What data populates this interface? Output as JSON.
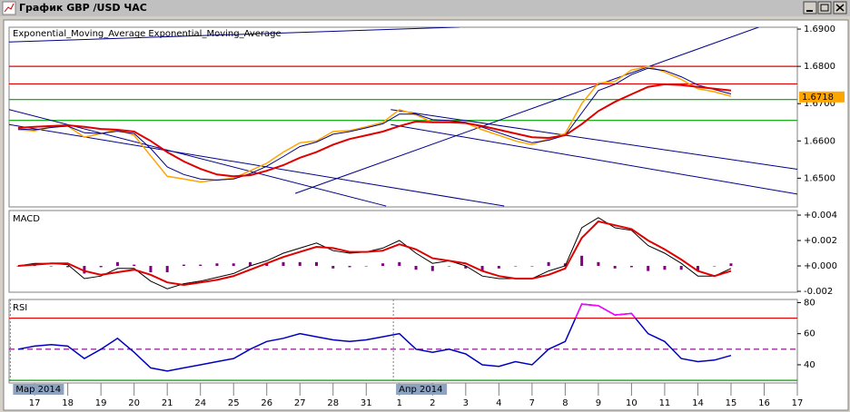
{
  "window": {
    "title": "График GBP /USD ЧАС"
  },
  "x_axis": {
    "xlim": [
      -0.77,
      23.0
    ],
    "xticks": [
      {
        "value": 0,
        "label": "17"
      },
      {
        "value": 1,
        "label": "18"
      },
      {
        "value": 2,
        "label": "19"
      },
      {
        "value": 3,
        "label": "20"
      },
      {
        "value": 4,
        "label": "21"
      },
      {
        "value": 5,
        "label": "24"
      },
      {
        "value": 6,
        "label": "25"
      },
      {
        "value": 7,
        "label": "26"
      },
      {
        "value": 8,
        "label": "27"
      },
      {
        "value": 9,
        "label": "28"
      },
      {
        "value": 10,
        "label": "31"
      },
      {
        "value": 11,
        "label": "1"
      },
      {
        "value": 12,
        "label": "2"
      },
      {
        "value": 13,
        "label": "3"
      },
      {
        "value": 14,
        "label": "4"
      },
      {
        "value": 15,
        "label": "7"
      },
      {
        "value": 16,
        "label": "8"
      },
      {
        "value": 17,
        "label": "9"
      },
      {
        "value": 18,
        "label": "10"
      },
      {
        "value": 19,
        "label": "11"
      },
      {
        "value": 20,
        "label": "14"
      },
      {
        "value": 21,
        "label": "15"
      },
      {
        "value": 22,
        "label": "16"
      },
      {
        "value": 23,
        "label": "17"
      }
    ],
    "period_labels": [
      {
        "value": -0.65,
        "label": "Мар 2014"
      },
      {
        "value": 10.9,
        "label": "Апр 2014"
      }
    ],
    "x": [
      -0.5,
      0,
      0.5,
      1,
      1.5,
      2,
      2.5,
      3,
      3.5,
      4,
      4.5,
      5,
      5.5,
      6,
      6.5,
      7,
      7.5,
      8,
      8.5,
      9,
      9.5,
      10,
      10.5,
      11,
      11.5,
      12,
      12.5,
      13,
      13.5,
      14,
      14.5,
      15,
      15.5,
      16,
      16.5,
      17,
      17.5,
      18,
      18.5,
      19,
      19.5,
      20,
      20.5,
      21
    ]
  },
  "chart_data": [
    {
      "type": "line",
      "ylim": [
        1.6423,
        1.6905
      ],
      "yticks": [
        {
          "value": 1.65,
          "label": "1.6500"
        },
        {
          "value": 1.66,
          "label": "1.6600"
        },
        {
          "value": 1.67,
          "label": "1.6700"
        },
        {
          "value": 1.68,
          "label": "1.6800"
        },
        {
          "value": 1.69,
          "label": "1.6900"
        }
      ],
      "last_price": 1.6718,
      "last_price_color": "#ffa500",
      "levels": [
        {
          "value": 1.68,
          "color": "#e00000"
        },
        {
          "value": 1.6753,
          "color": "#e00000"
        },
        {
          "value": 1.6711,
          "color": "#00a000"
        },
        {
          "value": 1.6655,
          "color": "#00a000"
        }
      ],
      "trendlines": [
        {
          "x": [
            -0.77,
            12.8
          ],
          "values": [
            1.68653,
            1.69053
          ],
          "color": "#00008b"
        },
        {
          "x": [
            7.86,
            21.84
          ],
          "values": [
            1.64592,
            1.69053
          ],
          "color": "#00008b"
        },
        {
          "x": [
            -0.77,
            10.6
          ],
          "values": [
            1.6684,
            1.64253
          ],
          "color": "#00008b"
        },
        {
          "x": [
            -0.77,
            14.16
          ],
          "values": [
            1.6644,
            1.64253
          ],
          "color": "#00008b"
        },
        {
          "x": [
            10.74,
            23.0
          ],
          "values": [
            1.6684,
            1.6524
          ],
          "color": "#00008b"
        },
        {
          "x": [
            10.74,
            23.0
          ],
          "values": [
            1.6644,
            1.64573
          ],
          "color": "#00008b"
        }
      ],
      "series": [
        {
          "color": "#ffa500",
          "width": 1.5,
          "values": [
            1.663,
            1.6627,
            1.6638,
            1.664,
            1.661,
            1.662,
            1.663,
            1.6615,
            1.656,
            1.6505,
            1.6498,
            1.649,
            1.6495,
            1.65,
            1.652,
            1.654,
            1.657,
            1.6595,
            1.66,
            1.6625,
            1.6628,
            1.6638,
            1.665,
            1.6684,
            1.667,
            1.665,
            1.6655,
            1.6648,
            1.663,
            1.6615,
            1.66,
            1.659,
            1.6605,
            1.662,
            1.67,
            1.6755,
            1.676,
            1.679,
            1.68,
            1.6785,
            1.6765,
            1.674,
            1.6732,
            1.672
          ]
        },
        {
          "name": "Exponential_Moving_Average",
          "color": "#000080",
          "width": 1,
          "values": [
            1.6632,
            1.663,
            1.6636,
            1.664,
            1.6622,
            1.662,
            1.6626,
            1.662,
            1.658,
            1.653,
            1.651,
            1.6498,
            1.6495,
            1.6498,
            1.6512,
            1.6532,
            1.6558,
            1.6585,
            1.6597,
            1.6618,
            1.6625,
            1.6635,
            1.6646,
            1.6672,
            1.6672,
            1.6657,
            1.6655,
            1.665,
            1.6637,
            1.6622,
            1.6607,
            1.6595,
            1.6602,
            1.6615,
            1.6675,
            1.6735,
            1.6752,
            1.6778,
            1.6795,
            1.6789,
            1.6772,
            1.675,
            1.6738,
            1.6726
          ]
        },
        {
          "name": "Exponential_Moving_Average",
          "color": "#e00000",
          "width": 2,
          "values": [
            1.6635,
            1.6638,
            1.664,
            1.6642,
            1.6638,
            1.6632,
            1.663,
            1.6625,
            1.66,
            1.657,
            1.6545,
            1.6525,
            1.651,
            1.6505,
            1.6508,
            1.652,
            1.6535,
            1.6555,
            1.657,
            1.659,
            1.6605,
            1.6615,
            1.6625,
            1.664,
            1.6652,
            1.665,
            1.665,
            1.6648,
            1.664,
            1.663,
            1.662,
            1.661,
            1.6608,
            1.6615,
            1.6645,
            1.668,
            1.6705,
            1.6725,
            1.6745,
            1.6752,
            1.675,
            1.6745,
            1.674,
            1.6735
          ]
        }
      ]
    },
    {
      "type": "line",
      "title": "MACD",
      "ylim": [
        -0.00207,
        0.00436
      ],
      "yticks": [
        {
          "value": -0.002,
          "label": "-0.002"
        },
        {
          "value": 0,
          "label": "+0.000"
        },
        {
          "value": 0.002,
          "label": "+0.002"
        },
        {
          "value": 0.004,
          "label": "+0.004"
        }
      ],
      "series": [
        {
          "style": "histogram",
          "color": "#800080",
          "values": [
            0,
            0.0001,
            0,
            -0.0001,
            -0.0006,
            -0.0001,
            0.0003,
            0.0001,
            -0.0005,
            -0.0005,
            0.0001,
            0.0001,
            0.0002,
            0.0002,
            0.0003,
            0.0002,
            0.0003,
            0.0003,
            0.0003,
            -0.0002,
            -0.0001,
            0,
            0.0002,
            0.0003,
            -0.0003,
            -0.0004,
            0,
            -0.0002,
            -0.0004,
            -0.0002,
            0,
            0,
            0.0003,
            0.0002,
            0.0008,
            0.0003,
            -0.0002,
            -0.0001,
            -0.0004,
            -0.0003,
            -0.0003,
            -0.0004,
            0,
            0.0002
          ]
        },
        {
          "color": "#000000",
          "width": 1,
          "values": [
            0,
            0.0002,
            0.0002,
            0.0001,
            -0.001,
            -0.0008,
            -0.0002,
            -0.0002,
            -0.0012,
            -0.0018,
            -0.0014,
            -0.0012,
            -0.0009,
            -0.0006,
            0,
            0.0004,
            0.001,
            0.0014,
            0.0018,
            0.0012,
            0.001,
            0.0011,
            0.0014,
            0.002,
            0.001,
            0.0002,
            0.0004,
            0,
            -0.0008,
            -0.001,
            -0.001,
            -0.001,
            -0.0004,
            0,
            0.003,
            0.0038,
            0.003,
            0.0028,
            0.0016,
            0.001,
            0.0002,
            -0.0008,
            -0.0008,
            -0.0002
          ]
        },
        {
          "color": "#e00000",
          "width": 2,
          "values": [
            0,
            0.0001,
            0.0002,
            0.0002,
            -0.0004,
            -0.0007,
            -0.0005,
            -0.0003,
            -0.0007,
            -0.0013,
            -0.0015,
            -0.0013,
            -0.0011,
            -0.0008,
            -0.0003,
            0.0002,
            0.0007,
            0.0011,
            0.0015,
            0.0014,
            0.0011,
            0.0011,
            0.0012,
            0.0017,
            0.0013,
            0.0006,
            0.0004,
            0.0002,
            -0.0004,
            -0.0008,
            -0.001,
            -0.001,
            -0.0007,
            -0.0002,
            0.0022,
            0.0035,
            0.0032,
            0.0029,
            0.002,
            0.0013,
            0.0005,
            -0.0004,
            -0.0008,
            -0.0004
          ]
        }
      ]
    },
    {
      "type": "line",
      "title": "RSI",
      "ylim": [
        28.3,
        82
      ],
      "yticks": [
        40,
        60,
        80
      ],
      "levels": [
        {
          "value": 70,
          "color": "#e00000"
        },
        {
          "value": 50,
          "color": "#800080",
          "style": "dashed"
        },
        {
          "value": 30,
          "color": "#00a000"
        }
      ],
      "highlight_above": 70,
      "highlight_color": "#ff00ff",
      "series": [
        {
          "color": "#0000c0",
          "width": 1.5,
          "values": [
            50,
            52,
            53,
            52,
            44,
            50,
            57,
            48,
            38,
            36,
            38,
            40,
            42,
            44,
            50,
            55,
            57,
            60,
            58,
            56,
            55,
            56,
            58,
            60,
            50,
            48,
            50,
            47,
            40,
            39,
            42,
            40,
            50,
            55,
            79,
            78,
            72,
            73,
            60,
            55,
            44,
            42,
            43,
            46
          ]
        }
      ]
    }
  ]
}
